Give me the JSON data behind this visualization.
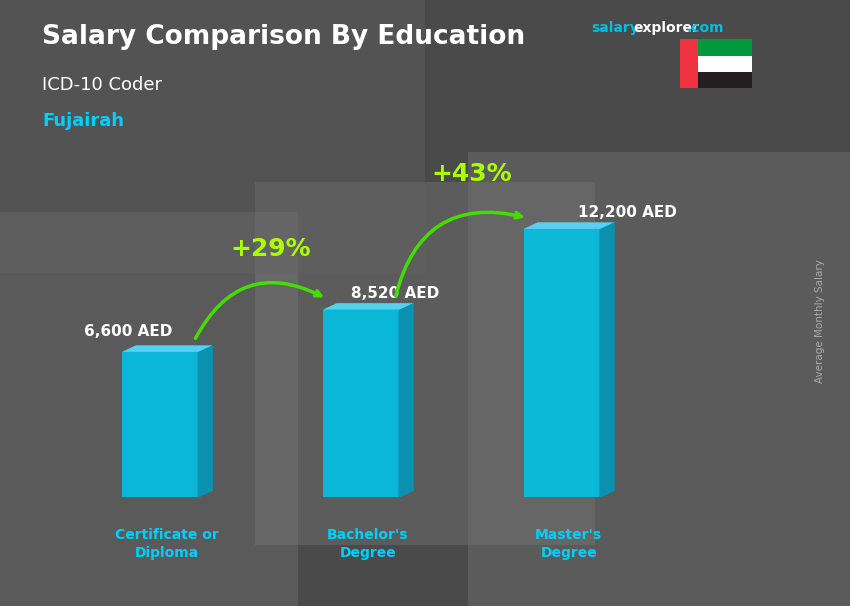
{
  "title": "Salary Comparison By Education",
  "subtitle_job": "ICD-10 Coder",
  "subtitle_location": "Fujairah",
  "categories": [
    "Certificate or\nDiploma",
    "Bachelor's\nDegree",
    "Master's\nDegree"
  ],
  "values": [
    6600,
    8520,
    12200
  ],
  "value_labels": [
    "6,600 AED",
    "8,520 AED",
    "12,200 AED"
  ],
  "pct_labels": [
    "+29%",
    "+43%"
  ],
  "bar_color_face": "#00C5E8",
  "bar_color_side": "#0099BB",
  "bar_color_top": "#55DDFF",
  "bg_color": "#5a5a5a",
  "title_color": "#FFFFFF",
  "job_color": "#FFFFFF",
  "location_color": "#00CFFF",
  "label_color": "#FFFFFF",
  "tick_label_color": "#00CFFF",
  "arrow_color": "#44DD00",
  "pct_color": "#AAFF00",
  "ylabel_text": "Average Monthly Salary",
  "ylim": [
    0,
    16000
  ],
  "bar_width": 0.38,
  "x_positions": [
    0.5,
    1.5,
    2.5
  ],
  "xlim": [
    0.0,
    3.3
  ],
  "depth_x": 0.07,
  "depth_y": 300
}
